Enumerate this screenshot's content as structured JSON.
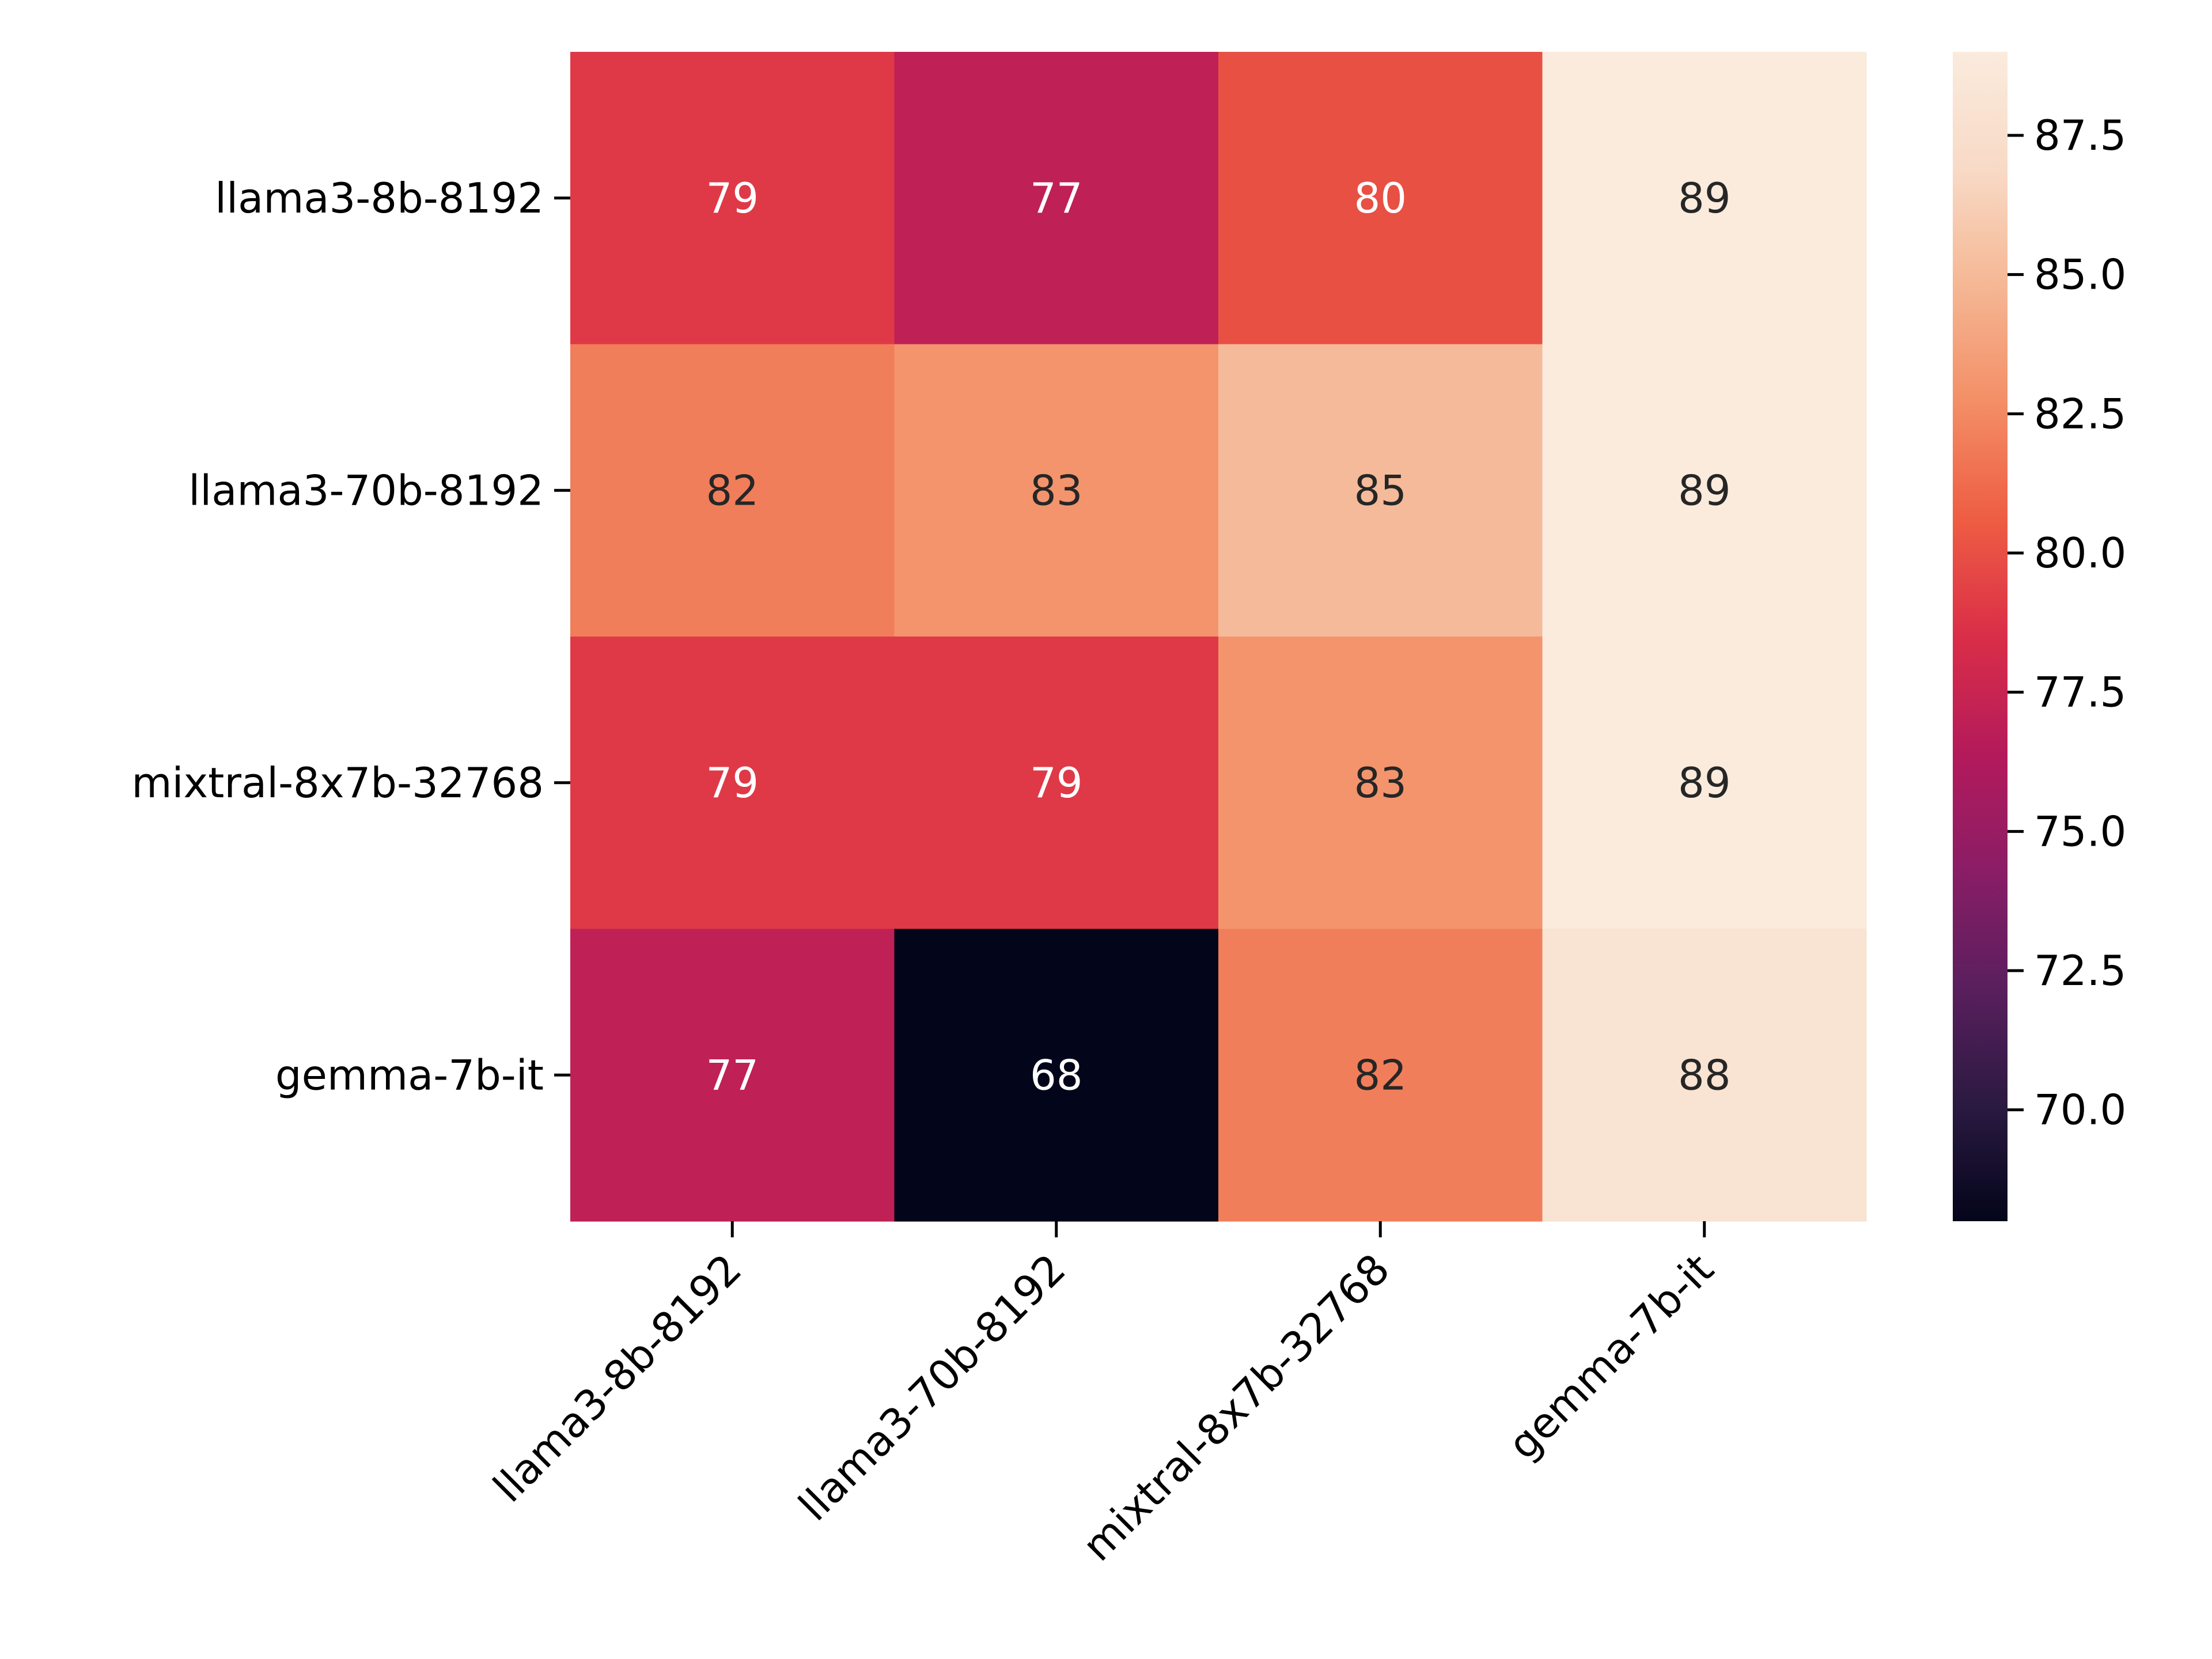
{
  "chart_data": {
    "type": "heatmap",
    "title": "",
    "xlabel": "",
    "ylabel": "",
    "rows": [
      "llama3-8b-8192",
      "llama3-70b-8192",
      "mixtral-8x7b-32768",
      "gemma-7b-it"
    ],
    "columns": [
      "llama3-8b-8192",
      "llama3-70b-8192",
      "mixtral-8x7b-32768",
      "gemma-7b-it"
    ],
    "values": [
      [
        79,
        77,
        80,
        89
      ],
      [
        82,
        83,
        85,
        89
      ],
      [
        79,
        79,
        83,
        89
      ],
      [
        77,
        68,
        82,
        88
      ]
    ],
    "colorbar": {
      "min": 68,
      "max": 89,
      "ticks": [
        70.0,
        72.5,
        75.0,
        77.5,
        80.0,
        82.5,
        85.0,
        87.5
      ],
      "tick_labels": [
        "70.0",
        "72.5",
        "75.0",
        "77.5",
        "80.0",
        "82.5",
        "85.0",
        "87.5"
      ],
      "colormap": "rocket",
      "colormap_stops": [
        "#03051a",
        "#2b1a41",
        "#5a1f5e",
        "#8a1d66",
        "#b41a5b",
        "#da2e48",
        "#ee5d43",
        "#f38e66",
        "#f5b794",
        "#f8dac6",
        "#faebdd"
      ]
    },
    "annotation_text_dark": "#262626",
    "annotation_text_light": "#ffffff"
  }
}
